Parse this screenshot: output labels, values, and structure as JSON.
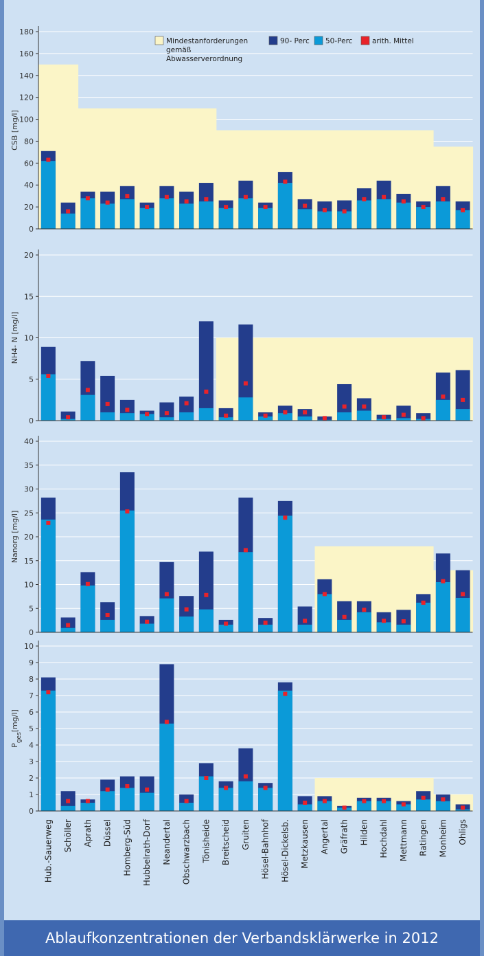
{
  "caption": "Ablaufkonzentrationen der Verbandsklärwerke in 2012",
  "colors": {
    "standard": "#fbf5c7",
    "p90": "#233d8c",
    "p50": "#0b9ad8",
    "mean": "#e8232a",
    "grid": "#ffffff",
    "axis": "#333333"
  },
  "legend": {
    "items": [
      {
        "key": "standard",
        "label_lines": [
          "Mindestanforderungen",
          "gemäß",
          "Abwasserverordnung"
        ]
      },
      {
        "key": "p90",
        "label_lines": [
          "90- Perc"
        ]
      },
      {
        "key": "p50",
        "label_lines": [
          "50-Perc"
        ]
      },
      {
        "key": "mean",
        "label_lines": [
          "arith. Mittel"
        ]
      }
    ]
  },
  "categories": [
    "Hub.-Sauerweg",
    "Schöller",
    "Aprath",
    "Düssel",
    "Homberg-Süd",
    "Hubbelrath-Dorf",
    "Neandertal",
    "Obschwarzbach",
    "Tönisheide",
    "Breitscheid",
    "Gruiten",
    "Hösel-Bahnhof",
    "Hösel-Dickelsb.",
    "Metzkausen",
    "Angertal",
    "Gräfrath",
    "Hilden",
    "Hochdahl",
    "Mettmann",
    "Ratingen",
    "Monheim",
    "Ohligs"
  ],
  "chart_data": [
    {
      "type": "bar",
      "ylabel": "CSB  [mg/l]",
      "ylim": [
        0,
        180
      ],
      "yticks": [
        0,
        20,
        40,
        60,
        80,
        100,
        120,
        140,
        160,
        180
      ],
      "grid": true,
      "legend": "top",
      "series": [
        {
          "name": "90- Perc",
          "values": [
            71,
            24,
            34,
            34,
            39,
            24,
            39,
            34,
            42,
            26,
            44,
            24,
            52,
            27,
            25,
            26,
            37,
            44,
            32,
            25,
            39,
            25
          ]
        },
        {
          "name": "50-Perc",
          "values": [
            62,
            14,
            28,
            23,
            27,
            19,
            28,
            23,
            25,
            19,
            28,
            19,
            42,
            18,
            16,
            16,
            26,
            27,
            24,
            20,
            25,
            17
          ]
        },
        {
          "name": "arith. Mittel",
          "values": [
            63,
            16,
            28,
            24,
            30,
            20,
            29,
            25,
            27,
            20,
            29,
            20,
            43,
            21,
            17,
            16,
            27,
            29,
            25,
            20,
            27,
            17
          ]
        },
        {
          "name": "Mindestanforderungen gemäß Abwasserverordnung",
          "values": [
            150,
            150,
            110,
            110,
            110,
            110,
            110,
            110,
            110,
            90,
            90,
            90,
            90,
            90,
            90,
            90,
            90,
            90,
            90,
            90,
            75,
            75
          ]
        }
      ]
    },
    {
      "type": "bar",
      "ylabel": "NH4- N [mg/l]",
      "ylim": [
        0,
        20
      ],
      "yticks": [
        0,
        5,
        10,
        15,
        20
      ],
      "grid": true,
      "series": [
        {
          "name": "90- Perc",
          "values": [
            8.9,
            1.1,
            7.2,
            5.4,
            2.5,
            1.2,
            2.2,
            2.9,
            12.0,
            1.5,
            11.6,
            1.0,
            1.8,
            1.4,
            0.5,
            4.4,
            2.7,
            0.7,
            1.8,
            0.9,
            5.8,
            6.1
          ]
        },
        {
          "name": "50-Perc",
          "values": [
            5.6,
            0.2,
            3.1,
            1.0,
            0.9,
            0.8,
            0.4,
            1.0,
            1.5,
            0.4,
            2.8,
            0.5,
            0.9,
            0.5,
            0.1,
            1.0,
            1.2,
            0.2,
            0.3,
            0.2,
            2.5,
            1.4
          ]
        },
        {
          "name": "arith. Mittel",
          "values": [
            5.4,
            0.4,
            3.7,
            2.0,
            1.3,
            0.8,
            0.9,
            2.1,
            3.5,
            0.6,
            4.5,
            0.6,
            1.0,
            1.0,
            0.3,
            1.7,
            1.7,
            0.4,
            0.7,
            0.3,
            2.9,
            2.5
          ]
        },
        {
          "name": "Mindestanforderungen gemäß Abwasserverordnung",
          "values": [
            null,
            null,
            null,
            null,
            null,
            null,
            null,
            null,
            null,
            10,
            10,
            10,
            10,
            10,
            10,
            10,
            10,
            10,
            10,
            10,
            10,
            10
          ]
        }
      ]
    },
    {
      "type": "bar",
      "ylabel": "Nanorg  [mg/l]",
      "ylim": [
        0,
        40
      ],
      "yticks": [
        0,
        5,
        10,
        15,
        20,
        25,
        30,
        35,
        40
      ],
      "grid": true,
      "series": [
        {
          "name": "90- Perc",
          "values": [
            28.2,
            3.1,
            12.6,
            6.3,
            33.5,
            3.4,
            14.7,
            7.6,
            16.9,
            2.6,
            28.2,
            3.0,
            27.5,
            5.4,
            11.1,
            6.5,
            6.5,
            4.2,
            4.7,
            8.0,
            16.5,
            13.0
          ]
        },
        {
          "name": "50-Perc",
          "values": [
            23.6,
            0.9,
            9.8,
            2.6,
            25.5,
            1.8,
            7.1,
            3.3,
            4.8,
            1.6,
            16.8,
            1.6,
            24.4,
            1.6,
            8.0,
            2.6,
            4.2,
            2.1,
            1.6,
            6.2,
            10.5,
            7.2
          ]
        },
        {
          "name": "arith. Mittel",
          "values": [
            22.9,
            1.5,
            10.1,
            3.6,
            25.3,
            2.2,
            8.0,
            4.8,
            7.8,
            1.8,
            17.2,
            2.0,
            24.0,
            2.4,
            8.0,
            3.2,
            4.7,
            2.4,
            2.3,
            6.2,
            10.7,
            8.0
          ]
        },
        {
          "name": "Mindestanforderungen gemäß Abwasserverordnung",
          "values": [
            null,
            null,
            null,
            null,
            null,
            null,
            null,
            null,
            null,
            null,
            null,
            null,
            null,
            null,
            18,
            18,
            18,
            18,
            18,
            18,
            13,
            13
          ]
        }
      ]
    },
    {
      "type": "bar",
      "ylabel": "Pges[mg/l]",
      "ylabel_parts": [
        "P",
        "ges",
        "[mg/l]"
      ],
      "ylim": [
        0,
        10
      ],
      "yticks": [
        0,
        1,
        2,
        3,
        4,
        5,
        6,
        7,
        8,
        9,
        10
      ],
      "grid": true,
      "series": [
        {
          "name": "90- Perc",
          "values": [
            8.1,
            1.2,
            0.7,
            1.9,
            2.1,
            2.1,
            8.9,
            1.0,
            2.9,
            1.8,
            3.8,
            1.7,
            7.8,
            0.9,
            0.9,
            0.3,
            0.8,
            0.8,
            0.6,
            1.2,
            1.0,
            0.4
          ]
        },
        {
          "name": "50-Perc",
          "values": [
            7.3,
            0.3,
            0.5,
            1.2,
            1.4,
            1.1,
            5.3,
            0.5,
            2.1,
            1.4,
            1.8,
            1.4,
            7.3,
            0.4,
            0.6,
            0.2,
            0.6,
            0.6,
            0.4,
            0.7,
            0.6,
            0.1
          ]
        },
        {
          "name": "arith. Mittel",
          "values": [
            7.2,
            0.6,
            0.6,
            1.3,
            1.5,
            1.3,
            5.4,
            0.6,
            2.0,
            1.4,
            2.1,
            1.4,
            7.1,
            0.5,
            0.6,
            0.2,
            0.6,
            0.6,
            0.4,
            0.8,
            0.7,
            0.2
          ]
        },
        {
          "name": "Mindestanforderungen gemäß Abwasserverordnung",
          "values": [
            null,
            null,
            null,
            null,
            null,
            null,
            null,
            null,
            null,
            null,
            null,
            null,
            null,
            null,
            2,
            2,
            2,
            2,
            2,
            2,
            1,
            1
          ]
        }
      ]
    }
  ]
}
